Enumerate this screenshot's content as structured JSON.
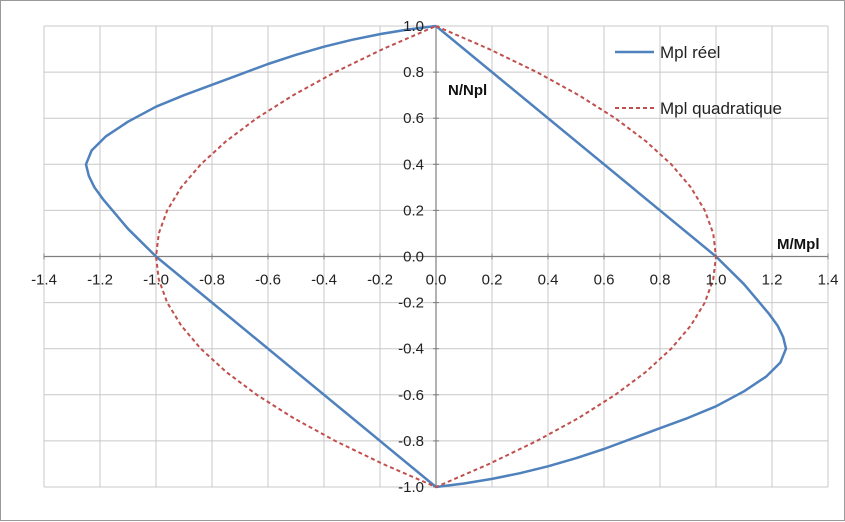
{
  "chart_data": {
    "type": "line",
    "title": "",
    "xlabel": "M/Mpl",
    "ylabel": "N/Npl",
    "xlim": [
      -1.4,
      1.4
    ],
    "ylim": [
      -1.0,
      1.0
    ],
    "x_ticks": [
      -1.4,
      -1.2,
      -1.0,
      -0.8,
      -0.6,
      -0.4,
      -0.2,
      0.0,
      0.2,
      0.4,
      0.6,
      0.8,
      1.0,
      1.2,
      1.4
    ],
    "x_tick_labels": [
      "-1.4",
      "-1.2",
      "-1.0",
      "-0.8",
      "-0.6",
      "-0.4",
      "-0.2",
      "0.0",
      "0.2",
      "0.4",
      "0.6",
      "0.8",
      "1.0",
      "1.2",
      "1.4"
    ],
    "y_ticks": [
      1.0,
      0.8,
      0.6,
      0.4,
      0.2,
      0.0,
      -0.2,
      -0.4,
      -0.6,
      -0.8,
      -1.0
    ],
    "y_tick_labels": [
      "1.0",
      "0.8",
      "0.6",
      "0.4",
      "0.2",
      "0.0",
      "-0.2",
      "-0.4",
      "-0.6",
      "-0.8",
      "-1.0"
    ],
    "grid": true,
    "legend_position": "top-right",
    "series": [
      {
        "name": "Mpl réel",
        "color": "#4f81bd",
        "style": "solid",
        "points": [
          [
            0.0,
            1.0
          ],
          [
            -0.1,
            0.985
          ],
          [
            -0.2,
            0.965
          ],
          [
            -0.3,
            0.94
          ],
          [
            -0.4,
            0.91
          ],
          [
            -0.5,
            0.875
          ],
          [
            -0.6,
            0.835
          ],
          [
            -0.7,
            0.79
          ],
          [
            -0.8,
            0.745
          ],
          [
            -0.9,
            0.7
          ],
          [
            -1.0,
            0.65
          ],
          [
            -1.1,
            0.585
          ],
          [
            -1.18,
            0.52
          ],
          [
            -1.23,
            0.46
          ],
          [
            -1.25,
            0.4
          ],
          [
            -1.24,
            0.35
          ],
          [
            -1.22,
            0.3
          ],
          [
            -1.19,
            0.25
          ],
          [
            -1.1,
            0.12
          ],
          [
            -1.0,
            0.0
          ],
          [
            0.0,
            -1.0
          ],
          [
            0.1,
            -0.985
          ],
          [
            0.2,
            -0.965
          ],
          [
            0.3,
            -0.94
          ],
          [
            0.4,
            -0.91
          ],
          [
            0.5,
            -0.875
          ],
          [
            0.6,
            -0.835
          ],
          [
            0.7,
            -0.79
          ],
          [
            0.8,
            -0.745
          ],
          [
            0.9,
            -0.7
          ],
          [
            1.0,
            -0.65
          ],
          [
            1.1,
            -0.585
          ],
          [
            1.18,
            -0.52
          ],
          [
            1.23,
            -0.46
          ],
          [
            1.25,
            -0.4
          ],
          [
            1.24,
            -0.35
          ],
          [
            1.22,
            -0.3
          ],
          [
            1.19,
            -0.25
          ],
          [
            1.1,
            -0.12
          ],
          [
            1.0,
            0.0
          ],
          [
            0.0,
            1.0
          ]
        ]
      },
      {
        "name": "Mpl quadratique",
        "color": "#c0504d",
        "style": "dashed",
        "points": [
          [
            0.0,
            1.0
          ],
          [
            0.19,
            0.9
          ],
          [
            0.36,
            0.8
          ],
          [
            0.51,
            0.7
          ],
          [
            0.64,
            0.6
          ],
          [
            0.75,
            0.5
          ],
          [
            0.84,
            0.4
          ],
          [
            0.91,
            0.3
          ],
          [
            0.96,
            0.2
          ],
          [
            0.99,
            0.1
          ],
          [
            1.0,
            0.0
          ],
          [
            0.99,
            -0.1
          ],
          [
            0.96,
            -0.2
          ],
          [
            0.91,
            -0.3
          ],
          [
            0.84,
            -0.4
          ],
          [
            0.75,
            -0.5
          ],
          [
            0.64,
            -0.6
          ],
          [
            0.51,
            -0.7
          ],
          [
            0.36,
            -0.8
          ],
          [
            0.19,
            -0.9
          ],
          [
            0.0,
            -1.0
          ],
          [
            -0.19,
            -0.9
          ],
          [
            -0.36,
            -0.8
          ],
          [
            -0.51,
            -0.7
          ],
          [
            -0.64,
            -0.6
          ],
          [
            -0.75,
            -0.5
          ],
          [
            -0.84,
            -0.4
          ],
          [
            -0.91,
            -0.3
          ],
          [
            -0.96,
            -0.2
          ],
          [
            -0.99,
            -0.1
          ],
          [
            -1.0,
            0.0
          ],
          [
            -0.99,
            0.1
          ],
          [
            -0.96,
            0.2
          ],
          [
            -0.91,
            0.3
          ],
          [
            -0.84,
            0.4
          ],
          [
            -0.75,
            0.5
          ],
          [
            -0.64,
            0.6
          ],
          [
            -0.51,
            0.7
          ],
          [
            -0.36,
            0.8
          ],
          [
            -0.19,
            0.9
          ],
          [
            0.0,
            1.0
          ]
        ]
      }
    ]
  }
}
